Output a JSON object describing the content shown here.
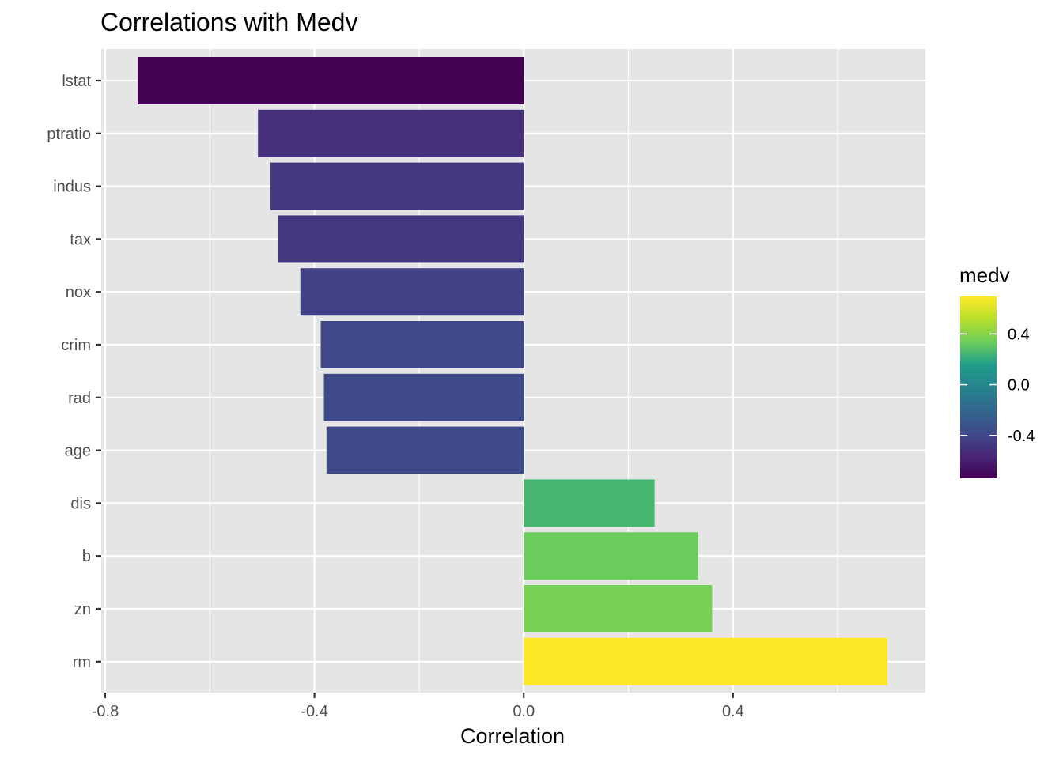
{
  "chart_data": {
    "type": "bar",
    "orientation": "horizontal",
    "title": "Correlations with Medv",
    "xlabel": "Correlation",
    "ylabel": "",
    "categories": [
      "lstat",
      "ptratio",
      "indus",
      "tax",
      "nox",
      "crim",
      "rad",
      "age",
      "dis",
      "b",
      "zn",
      "rm"
    ],
    "values": [
      -0.738,
      -0.508,
      -0.484,
      -0.469,
      -0.427,
      -0.388,
      -0.382,
      -0.377,
      0.25,
      0.333,
      0.36,
      0.695
    ],
    "xlim": [
      -0.8,
      0.7
    ],
    "xticks": [
      "-0.8",
      "-0.4",
      "0.0",
      "0.4"
    ],
    "xtick_values": [
      -0.8,
      -0.4,
      0.0,
      0.4
    ],
    "grid": true,
    "legend": {
      "title": "medv",
      "position": "right",
      "type": "colorbar",
      "colormap": "viridis",
      "range": [
        -0.738,
        0.695
      ],
      "tick_labels": [
        "0.4",
        "0.0",
        "-0.4"
      ],
      "tick_values": [
        0.4,
        0.0,
        -0.4
      ]
    },
    "colors": {
      "panel_background": "#e5e5e5",
      "grid": "#ffffff",
      "viridis_stops": [
        "#440154",
        "#482777",
        "#3f4a8a",
        "#31678e",
        "#26838f",
        "#1f9d8a",
        "#6cce5a",
        "#b6de2b",
        "#fee825"
      ]
    }
  }
}
